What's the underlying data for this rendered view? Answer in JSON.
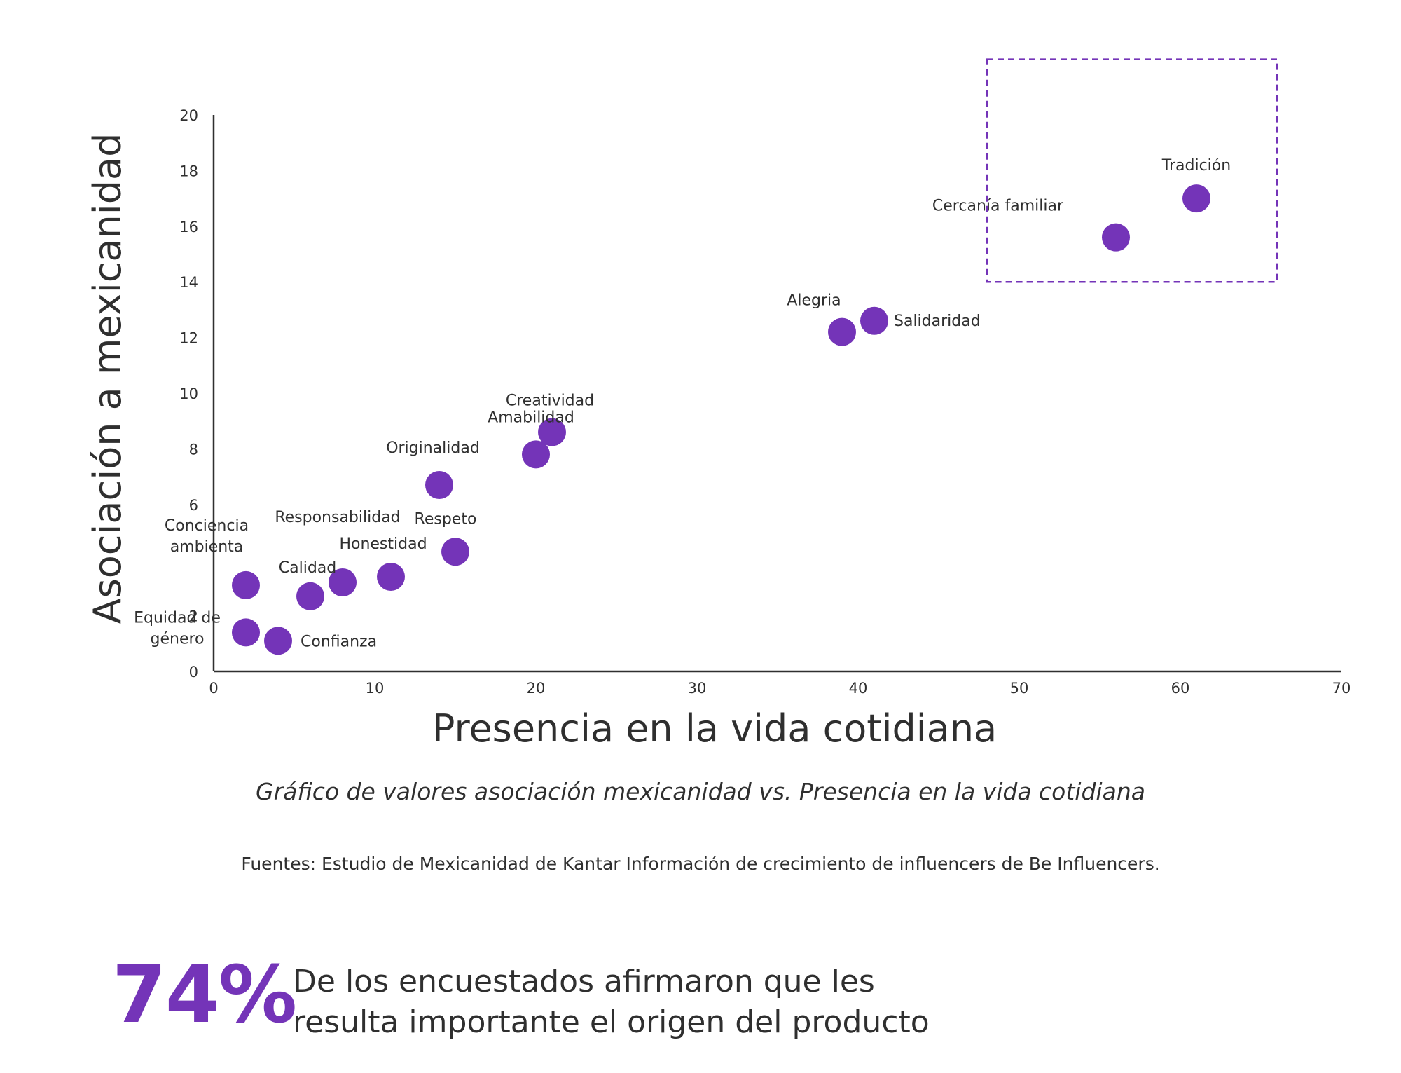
{
  "chart_data": {
    "type": "scatter",
    "title": "",
    "xlabel": "Presencia en la vida cotidiana",
    "ylabel": "Asociación a mexicanidad",
    "xlim": [
      0,
      70
    ],
    "ylim": [
      0,
      20
    ],
    "x_ticks": [
      0,
      10,
      20,
      30,
      40,
      50,
      60,
      70
    ],
    "y_ticks": [
      0,
      2,
      6,
      8,
      10,
      12,
      14,
      16,
      18,
      20
    ],
    "grid": false,
    "legend": "none",
    "point_color": "#7434b8",
    "points": [
      {
        "label": "Tradición",
        "x": 61,
        "y": 17
      },
      {
        "label": "Cercanía familiar",
        "x": 56,
        "y": 15.6
      },
      {
        "label": "Alegria",
        "x": 39,
        "y": 12.2
      },
      {
        "label": "Salidaridad",
        "x": 41,
        "y": 12.6
      },
      {
        "label": "Creatividad",
        "x": 21,
        "y": 8.6
      },
      {
        "label": "Amabilidad",
        "x": 20,
        "y": 7.8
      },
      {
        "label": "Originalidad",
        "x": 14,
        "y": 6.7
      },
      {
        "label": "Respeto",
        "x": 15,
        "y": 4.3
      },
      {
        "label": "Honestidad",
        "x": 11,
        "y": 3.4
      },
      {
        "label": "Responsabilidad",
        "x": 8,
        "y": 3.2
      },
      {
        "label": "Calidad",
        "x": 6,
        "y": 2.7
      },
      {
        "label": "Conciencia ambienta",
        "x": 2,
        "y": 3.1
      },
      {
        "label": "Equidad de género",
        "x": 2,
        "y": 1.4
      },
      {
        "label": "Confianza",
        "x": 4,
        "y": 1.1
      }
    ],
    "highlight_box": {
      "x_range": [
        48,
        66
      ],
      "y_range": [
        14,
        22
      ],
      "style": "dashed",
      "color": "#7434b8"
    }
  },
  "caption": "Gráfico de valores asociación mexicanidad vs. Presencia en la vida cotidiana",
  "source": "Fuentes: Estudio de Mexicanidad de Kantar Información  de crecimiento de influencers de Be Influencers.",
  "stat": {
    "value": "74%",
    "line1": "De los encuestados afirmaron que les",
    "line2": "resulta importante el origen del producto",
    "color": "#7434b8"
  }
}
